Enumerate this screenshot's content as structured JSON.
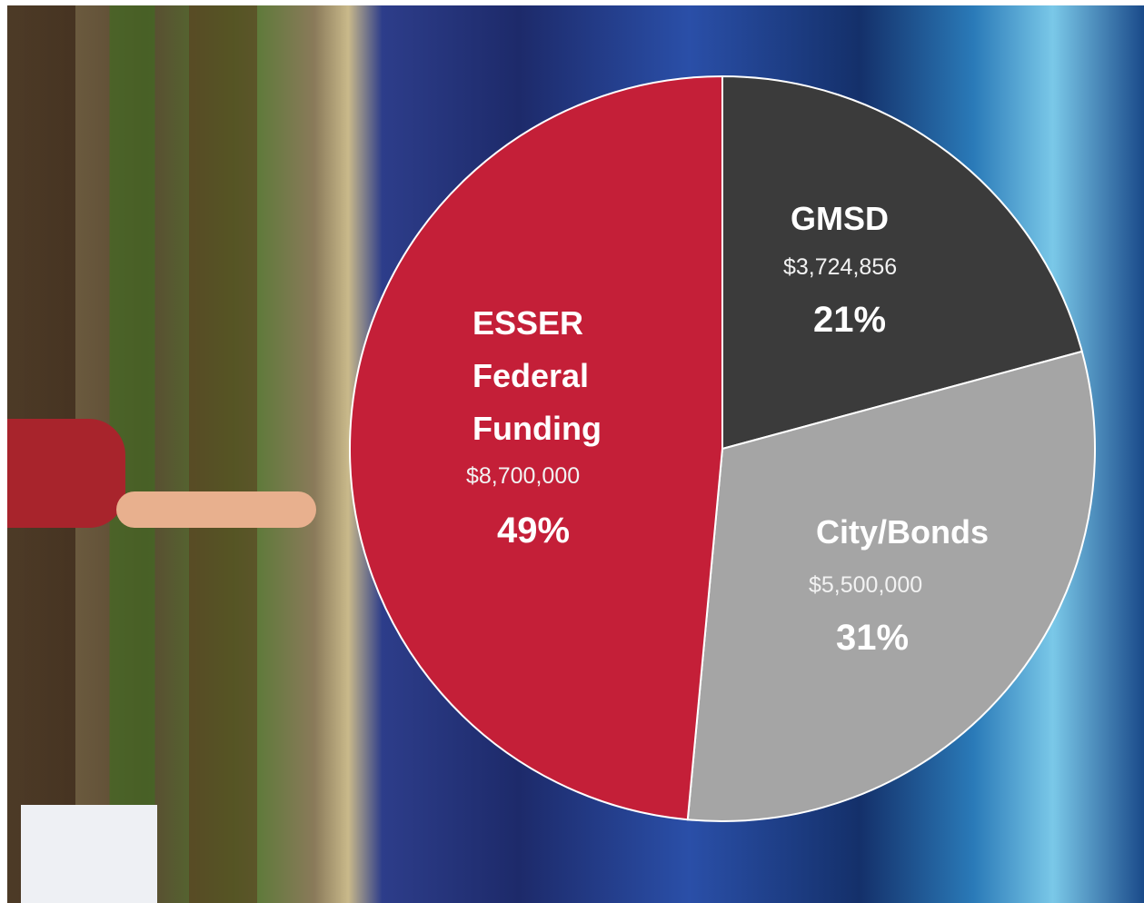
{
  "chart_data": {
    "type": "pie",
    "categories": [
      "GMSD",
      "City/Bonds",
      "ESSER Federal Funding"
    ],
    "values": [
      21,
      31,
      49
    ],
    "value_labels": [
      "21%",
      "31%",
      "49%"
    ],
    "amounts": [
      3724856,
      5500000,
      8700000
    ],
    "amount_labels": [
      "$3,724,856",
      "$5,500,000",
      "$8,700,000"
    ],
    "colors": [
      "#3b3b3b",
      "#a5a5a5",
      "#c41f38"
    ]
  }
}
